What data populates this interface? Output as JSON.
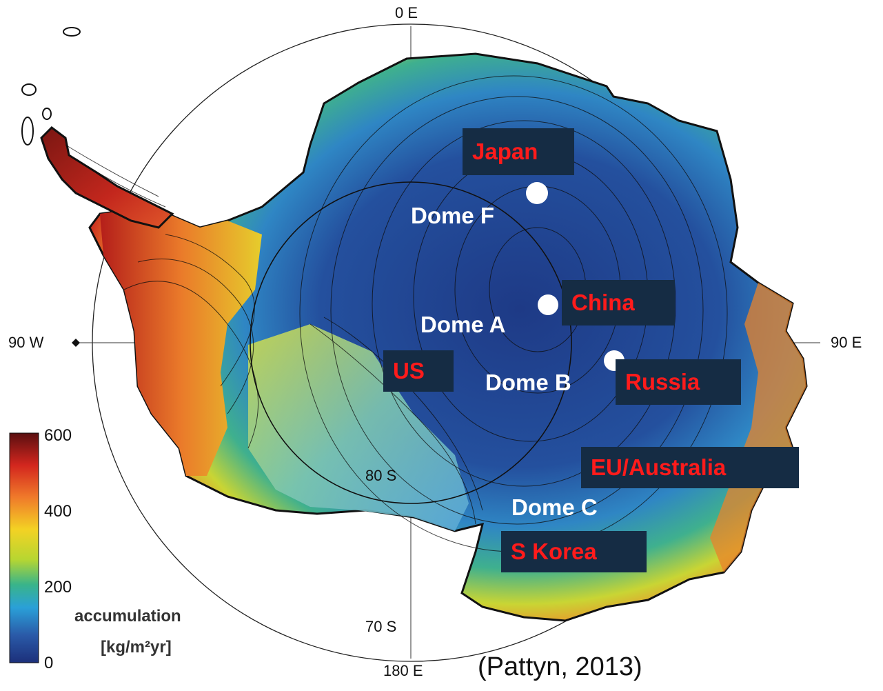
{
  "axes": {
    "top": "0 E",
    "left": "90 W",
    "right": "90 E",
    "bottom": "180 E",
    "lat_inner": "80 S",
    "lat_outer": "70 S"
  },
  "domes": [
    {
      "name": "Dome F"
    },
    {
      "name": "Dome A"
    },
    {
      "name": "Dome B"
    },
    {
      "name": "Dome C"
    }
  ],
  "countries": [
    {
      "name": "Japan"
    },
    {
      "name": "China"
    },
    {
      "name": "US"
    },
    {
      "name": "Russia"
    },
    {
      "name": "EU/Australia"
    },
    {
      "name": "S Korea"
    }
  ],
  "legend": {
    "title_line1": "accumulation",
    "title_line2": "[kg/m²yr]",
    "ticks": [
      "600",
      "400",
      "200",
      "0"
    ],
    "colors": [
      "#5a0f10",
      "#d3261e",
      "#f07a2a",
      "#f3d224",
      "#b7d631",
      "#39b48a",
      "#2aa0d8",
      "#2a5aa8",
      "#1c2f7a"
    ]
  },
  "citation": "(Pattyn, 2013)"
}
